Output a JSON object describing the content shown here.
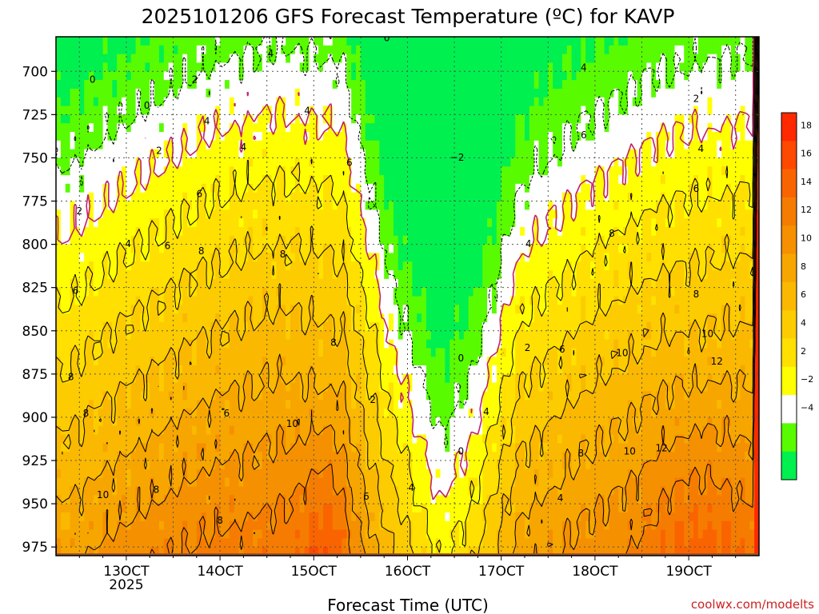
{
  "chart_data": {
    "type": "heatmap",
    "title": "2025101206 GFS Forecast Temperature (ºC) for KAVP",
    "xlabel": "Forecast Time (UTC)",
    "ylabel": "",
    "x_ticks": [
      {
        "day": 13,
        "label": "13OCT",
        "sub": "2025"
      },
      {
        "day": 14,
        "label": "14OCT",
        "sub": ""
      },
      {
        "day": 15,
        "label": "15OCT",
        "sub": ""
      },
      {
        "day": 16,
        "label": "16OCT",
        "sub": ""
      },
      {
        "day": 17,
        "label": "17OCT",
        "sub": ""
      },
      {
        "day": 18,
        "label": "18OCT",
        "sub": ""
      },
      {
        "day": 19,
        "label": "19OCT",
        "sub": ""
      }
    ],
    "xlim_days": [
      12.25,
      19.75
    ],
    "y_ticks": [
      700,
      725,
      750,
      775,
      800,
      825,
      850,
      875,
      900,
      925,
      950,
      975
    ],
    "ylim_hPa": [
      680,
      980
    ],
    "ground_hPa": 975,
    "colorbar": {
      "ticks": [
        "18",
        "16",
        "14",
        "12",
        "10",
        "8",
        "6",
        "4",
        "2",
        "−2",
        "−4"
      ],
      "colors": [
        "#ff2800",
        "#ff4800",
        "#fa6400",
        "#f57c00",
        "#f59000",
        "#f7a600",
        "#fab800",
        "#fccc00",
        "#ffe000",
        "#ffff00",
        "#ffffff",
        "#59fb00",
        "#00f050"
      ]
    },
    "contour_labels": [
      {
        "v": "0",
        "x": 12.64,
        "p": 705
      },
      {
        "v": "0",
        "x": 13.22,
        "p": 720
      },
      {
        "v": "2",
        "x": 13.35,
        "p": 746
      },
      {
        "v": "2",
        "x": 12.5,
        "p": 781
      },
      {
        "v": "2",
        "x": 13.73,
        "p": 705
      },
      {
        "v": "4",
        "x": 13.86,
        "p": 729
      },
      {
        "v": "4",
        "x": 14.25,
        "p": 744
      },
      {
        "v": "4",
        "x": 14.54,
        "p": 690
      },
      {
        "v": "4",
        "x": 14.93,
        "p": 723
      },
      {
        "v": "6",
        "x": 13.78,
        "p": 771
      },
      {
        "v": "6",
        "x": 13.44,
        "p": 801
      },
      {
        "v": "6",
        "x": 12.46,
        "p": 827
      },
      {
        "v": "4",
        "x": 13.02,
        "p": 800
      },
      {
        "v": "8",
        "x": 13.8,
        "p": 804
      },
      {
        "v": "8",
        "x": 14.67,
        "p": 806
      },
      {
        "v": "6",
        "x": 15.38,
        "p": 753
      },
      {
        "v": "8",
        "x": 15.21,
        "p": 857
      },
      {
        "v": "8",
        "x": 12.41,
        "p": 877
      },
      {
        "v": "8",
        "x": 12.57,
        "p": 898
      },
      {
        "v": "6",
        "x": 14.07,
        "p": 898
      },
      {
        "v": "10",
        "x": 14.77,
        "p": 904
      },
      {
        "v": "8",
        "x": 13.32,
        "p": 942
      },
      {
        "v": "10",
        "x": 12.75,
        "p": 945
      },
      {
        "v": "8",
        "x": 14.0,
        "p": 960
      },
      {
        "v": "6",
        "x": 15.56,
        "p": 946
      },
      {
        "v": "4",
        "x": 16.04,
        "p": 941
      },
      {
        "v": "2",
        "x": 15.63,
        "p": 890
      },
      {
        "v": "0",
        "x": 15.78,
        "p": 681
      },
      {
        "v": "−2",
        "x": 16.53,
        "p": 750
      },
      {
        "v": "0",
        "x": 16.57,
        "p": 866
      },
      {
        "v": "0",
        "x": 16.57,
        "p": 920
      },
      {
        "v": "4",
        "x": 16.84,
        "p": 897
      },
      {
        "v": "4",
        "x": 17.29,
        "p": 800
      },
      {
        "v": "2",
        "x": 17.28,
        "p": 860
      },
      {
        "v": "6",
        "x": 17.65,
        "p": 861
      },
      {
        "v": "4",
        "x": 17.63,
        "p": 947
      },
      {
        "v": "4",
        "x": 17.88,
        "p": 698
      },
      {
        "v": "6",
        "x": 17.88,
        "p": 737
      },
      {
        "v": "8",
        "x": 18.18,
        "p": 794
      },
      {
        "v": "8",
        "x": 17.85,
        "p": 921
      },
      {
        "v": "10",
        "x": 18.29,
        "p": 863
      },
      {
        "v": "10",
        "x": 18.37,
        "p": 920
      },
      {
        "v": "12",
        "x": 18.71,
        "p": 918
      },
      {
        "v": "12",
        "x": 19.3,
        "p": 868
      },
      {
        "v": "10",
        "x": 19.2,
        "p": 852
      },
      {
        "v": "8",
        "x": 19.08,
        "p": 829
      },
      {
        "v": "6",
        "x": 19.08,
        "p": 768
      },
      {
        "v": "4",
        "x": 19.13,
        "p": 745
      },
      {
        "v": "2",
        "x": 19.08,
        "p": 716
      }
    ]
  },
  "credit": "coolwx.com/modelts"
}
